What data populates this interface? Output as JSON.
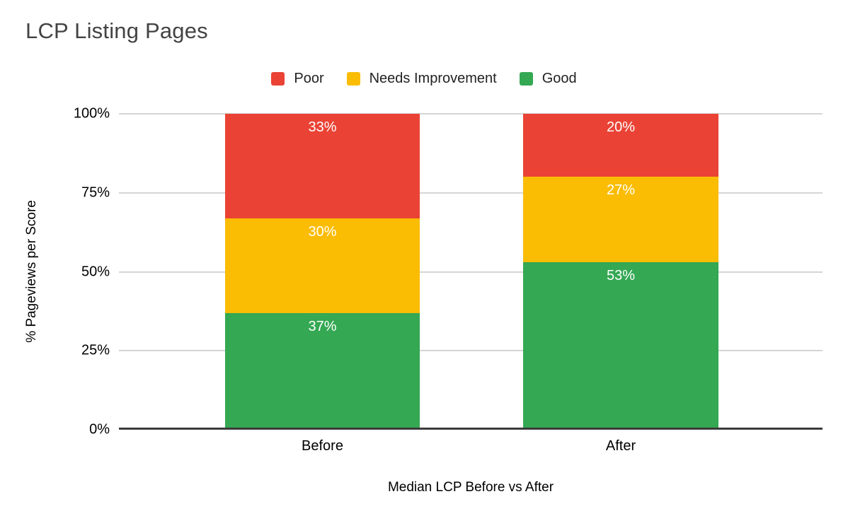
{
  "chart_data": {
    "type": "bar",
    "stacked": true,
    "stack_total": 100,
    "title": "LCP Listing Pages",
    "categories": [
      "Before",
      "After"
    ],
    "series": [
      {
        "name": "Poor",
        "color": "#ea4335",
        "values": [
          33,
          20
        ],
        "labels": [
          "33%",
          "20%"
        ]
      },
      {
        "name": "Needs Improvement",
        "color": "#fbbc04",
        "values": [
          30,
          27
        ],
        "labels": [
          "30%",
          "27%"
        ]
      },
      {
        "name": "Good",
        "color": "#34a853",
        "values": [
          37,
          53
        ],
        "labels": [
          "37%",
          "53%"
        ]
      }
    ],
    "xlabel": "Median LCP Before vs After",
    "ylabel": "% Pageviews per Score",
    "ylim": [
      0,
      100
    ],
    "yticks": [
      0,
      25,
      50,
      75,
      100
    ],
    "ytick_labels": [
      "0%",
      "25%",
      "50%",
      "75%",
      "100%"
    ],
    "grid": true,
    "legend_position": "top",
    "bar_label_position": "inside-top",
    "colors": {
      "grid_line": "#d5d5d5",
      "axis_line": "#3b3b3b",
      "title_text": "#434343",
      "tick_text": "#000000",
      "bar_label_text": "#ffffff",
      "background": "#ffffff"
    }
  }
}
